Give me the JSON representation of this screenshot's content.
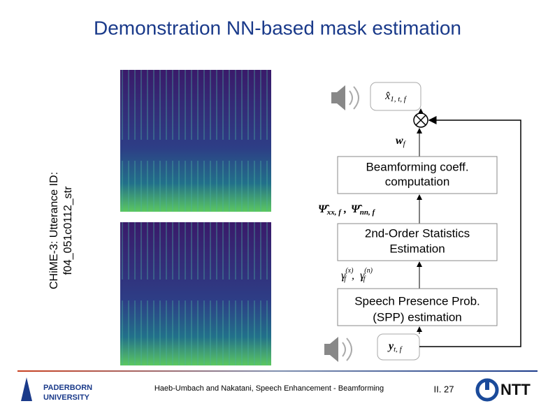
{
  "title": "Demonstration NN-based mask estimation",
  "side_label": [
    "CHiME-3: Utterance ID:",
    "f04_051c0112_str"
  ],
  "math": {
    "x_hat": {
      "base": "x̂",
      "sub": "1, t, f"
    },
    "w": {
      "base": "w",
      "sub": "f"
    },
    "psi": {
      "a": "Ψ̂",
      "a_sub": "xx, f",
      "sep": ",",
      "b": "Ψ̂",
      "b_sub": "nn, f"
    },
    "gamma": {
      "a": "γ",
      "a_sup": "(x)",
      "a_sub": "tf",
      "sep": ",",
      "b": "γ",
      "b_sup": "(n)",
      "b_sub": "tf"
    },
    "y": {
      "base": "y",
      "sub": "t, f"
    }
  },
  "blocks": [
    [
      "Beamforming coeff.",
      "computation"
    ],
    [
      "2nd-Order Statistics",
      "Estimation"
    ],
    [
      "Speech Presence Prob.",
      "(SPP) estimation"
    ]
  ],
  "footer": {
    "university": [
      "PADERBORN",
      "UNIVERSITY"
    ],
    "citation": "Haeb-Umbach and Nakatani, Speech Enhancement - Beamforming",
    "page": "II. 27",
    "company": "NTT"
  }
}
